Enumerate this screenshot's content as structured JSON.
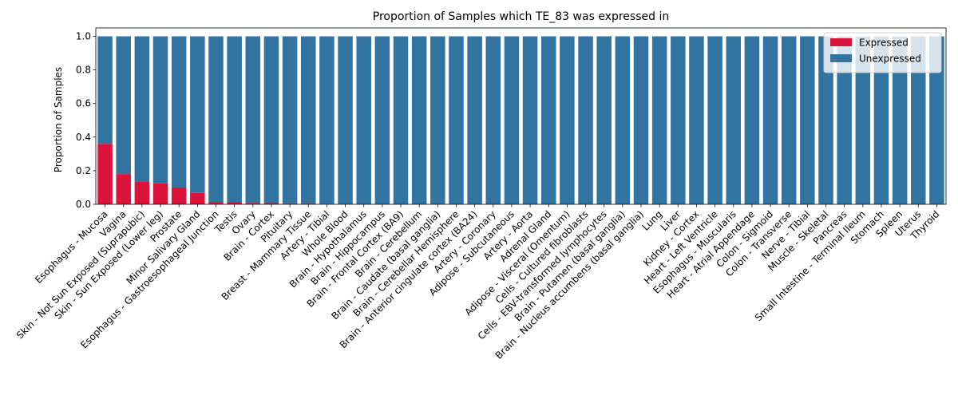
{
  "chart_data": {
    "type": "bar",
    "stacked": true,
    "title": "Proportion of Samples which TE_83 was expressed in",
    "xlabel": "",
    "ylabel": "Proportion of Samples",
    "ylim": [
      0,
      1.05
    ],
    "yticks": [
      "0.0",
      "0.2",
      "0.4",
      "0.6",
      "0.8",
      "1.0"
    ],
    "legend_position": "top-right",
    "categories": [
      "Esophagus - Mucosa",
      "Vagina",
      "Skin - Not Sun Exposed (Suprapubic)",
      "Skin - Sun Exposed (Lower leg)",
      "Prostate",
      "Minor Salivary Gland",
      "Esophagus - Gastroesophageal Junction",
      "Testis",
      "Ovary",
      "Brain - Cortex",
      "Pituitary",
      "Breast - Mammary Tissue",
      "Artery - Tibial",
      "Whole Blood",
      "Brain - Hypothalamus",
      "Brain - Hippocampus",
      "Brain - Frontal Cortex (BA9)",
      "Brain - Cerebellum",
      "Brain - Caudate (basal ganglia)",
      "Brain - Cerebellar Hemisphere",
      "Brain - Anterior cingulate cortex (BA24)",
      "Artery - Coronary",
      "Adipose - Subcutaneous",
      "Artery - Aorta",
      "Adrenal Gland",
      "Adipose - Visceral (Omentum)",
      "Cells - Cultured fibroblasts",
      "Cells - EBV-transformed lymphocytes",
      "Brain - Putamen (basal ganglia)",
      "Brain - Nucleus accumbens (basal ganglia)",
      "Lung",
      "Liver",
      "Kidney - Cortex",
      "Heart - Left Ventricle",
      "Esophagus - Muscularis",
      "Heart - Atrial Appendage",
      "Colon - Sigmoid",
      "Colon - Transverse",
      "Nerve - Tibial",
      "Muscle - Skeletal",
      "Pancreas",
      "Small Intestine - Terminal Ileum",
      "Stomach",
      "Spleen",
      "Uterus",
      "Thyroid"
    ],
    "series": [
      {
        "name": "Expressed",
        "color": "#dc143c",
        "values": [
          0.36,
          0.18,
          0.135,
          0.125,
          0.1,
          0.068,
          0.014,
          0.012,
          0.008,
          0.007,
          0.006,
          0.006,
          0.004,
          0,
          0,
          0,
          0,
          0,
          0,
          0,
          0,
          0,
          0,
          0,
          0,
          0,
          0,
          0,
          0,
          0,
          0,
          0,
          0,
          0,
          0,
          0,
          0,
          0,
          0,
          0,
          0,
          0,
          0,
          0,
          0,
          0
        ]
      },
      {
        "name": "Unexpressed",
        "color": "#3274a1",
        "values": [
          0.64,
          0.82,
          0.865,
          0.875,
          0.9,
          0.932,
          0.986,
          0.988,
          0.992,
          0.993,
          0.994,
          0.994,
          0.996,
          1,
          1,
          1,
          1,
          1,
          1,
          1,
          1,
          1,
          1,
          1,
          1,
          1,
          1,
          1,
          1,
          1,
          1,
          1,
          1,
          1,
          1,
          1,
          1,
          1,
          1,
          1,
          1,
          1,
          1,
          1,
          1,
          1
        ]
      }
    ]
  }
}
